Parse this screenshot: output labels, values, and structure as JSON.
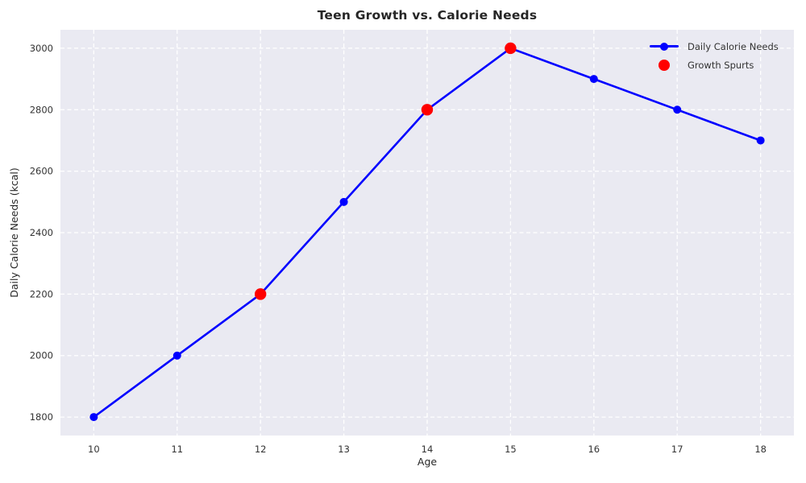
{
  "figure": {
    "title": "Teen Growth vs. Calorie Needs",
    "xlabel": "Age",
    "ylabel": "Daily Calorie Needs (kcal)"
  },
  "legend": {
    "position": "upper right",
    "items": [
      {
        "label": "Daily Calorie Needs",
        "marker": "line-with-dot",
        "color": "#0000ff"
      },
      {
        "label": "Growth Spurts",
        "marker": "dot",
        "color": "#ff0000"
      }
    ]
  },
  "chart_data": {
    "type": "line",
    "title": "Teen Growth vs. Calorie Needs",
    "xlabel": "Age",
    "ylabel": "Daily Calorie Needs (kcal)",
    "x": [
      10,
      11,
      12,
      13,
      14,
      15,
      16,
      17,
      18
    ],
    "series": [
      {
        "name": "Daily Calorie Needs",
        "type": "line",
        "color": "#0000ff",
        "marker": "circle",
        "values": [
          1800,
          2000,
          2200,
          2500,
          2800,
          3000,
          2900,
          2800,
          2700
        ]
      },
      {
        "name": "Growth Spurts",
        "type": "scatter",
        "color": "#ff0000",
        "points": [
          {
            "x": 12,
            "y": 2200
          },
          {
            "x": 14,
            "y": 2800
          },
          {
            "x": 15,
            "y": 3000
          }
        ]
      }
    ],
    "xticks": [
      10,
      11,
      12,
      13,
      14,
      15,
      16,
      17,
      18
    ],
    "yticks": [
      1800,
      2000,
      2200,
      2400,
      2600,
      2800,
      3000
    ],
    "xlim": [
      9.6,
      18.4
    ],
    "ylim": [
      1740,
      3060
    ],
    "grid": {
      "show": true,
      "color": "#ffffff",
      "style": "dashed"
    },
    "plot_bg": "#eaeaf2",
    "tick_color": "#333333",
    "legend_position": "upper right"
  }
}
